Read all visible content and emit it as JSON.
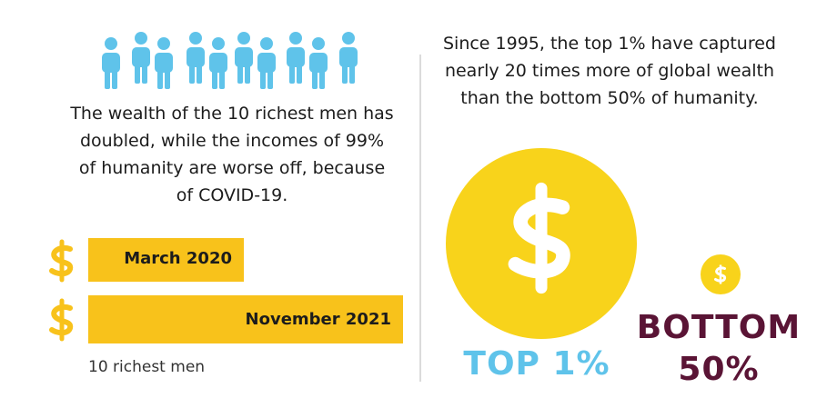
{
  "left": {
    "caption_lines": [
      "The wealth of the 10 richest men has",
      "doubled, while the incomes of 99%",
      "of humanity are worse off, because",
      "of COVID-19."
    ],
    "bars": [
      {
        "label": "March 2020"
      },
      {
        "label": "November 2021"
      }
    ],
    "legend": "10 richest men"
  },
  "right": {
    "caption_lines": [
      "Since 1995, the top 1% have captured",
      "nearly 20 times more of global wealth",
      "than the bottom 50% of humanity."
    ],
    "top_label": "TOP 1%",
    "bottom_label_lines": [
      "BOTTOM",
      "50%"
    ]
  }
}
